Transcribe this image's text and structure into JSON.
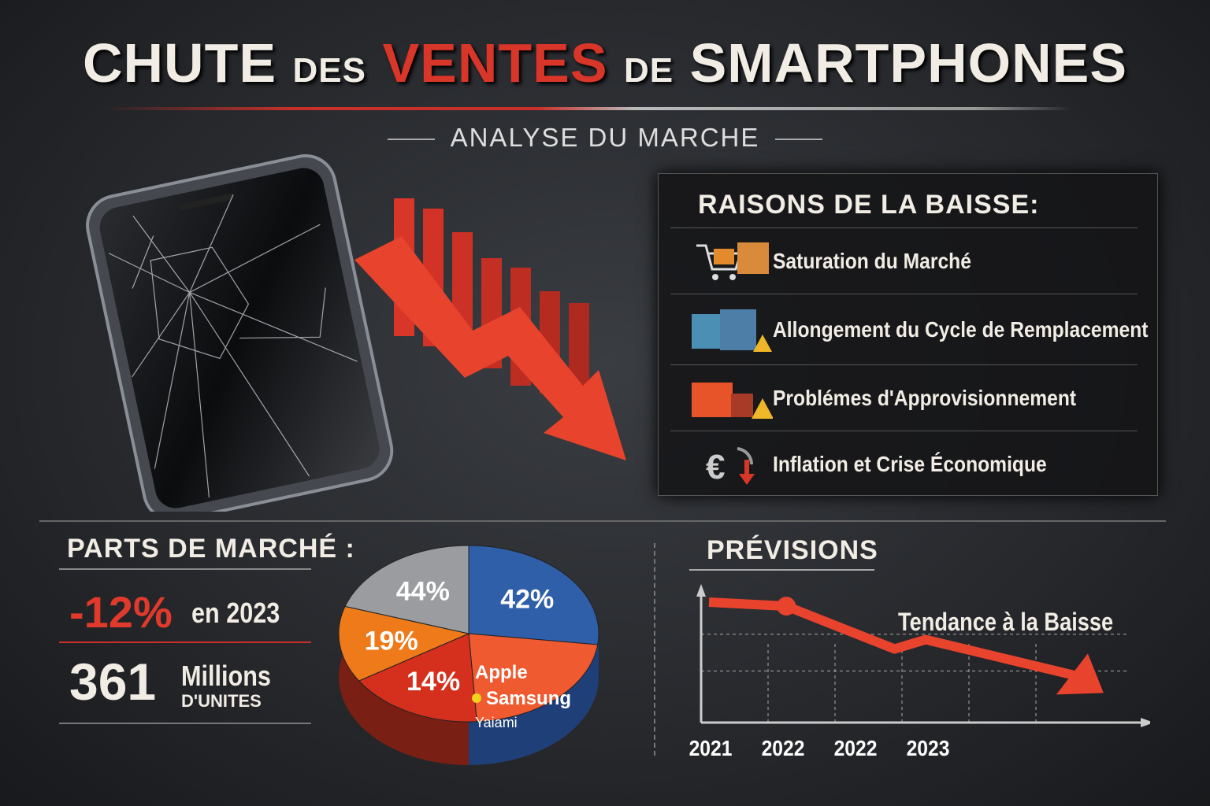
{
  "header": {
    "title_1": "CHUTE",
    "title_2": "DES",
    "title_3": "VENTES",
    "title_4": "DE",
    "title_5": "SMARTPHONES",
    "subtitle": "ANALYSE DU MARCHE"
  },
  "reasons": {
    "heading": "RAISONS DE LA BAISSE:",
    "items": [
      {
        "label": "Saturation du Marché",
        "icon": "shopping-cart-icon"
      },
      {
        "label": "Allongement du Cycle de Remplacement",
        "icon": "luggage-warning-icon"
      },
      {
        "label": "Problémes d'Approvisionnement",
        "icon": "container-warning-icon"
      },
      {
        "label": "Inflation et Crise Économique",
        "icon": "euro-down-icon"
      }
    ]
  },
  "market": {
    "heading": "PARTS DE MARCHÉ :",
    "change": "-12%",
    "change_suffix": "en 2023",
    "units": "361",
    "units_label_1": "Millions",
    "units_label_2": "D'UNITES"
  },
  "colors": {
    "accent": "#d9362a",
    "blue": "#2f5fa8",
    "gray": "#9a9ca0",
    "orange": "#ef7a1a"
  },
  "chart_data": [
    {
      "type": "pie",
      "title": "Parts de Marché",
      "slices": [
        {
          "label": "42%",
          "color": "#2f5fa8"
        },
        {
          "label": "",
          "color": "#ef5a30"
        },
        {
          "label": "14%",
          "color": "#d5301e"
        },
        {
          "label": "19%",
          "color": "#ef7a1a"
        },
        {
          "label": "44%",
          "color": "#9a9ca0"
        }
      ],
      "legend": [
        "Apple",
        "Samsung",
        "Yaiami"
      ]
    },
    {
      "type": "line",
      "title": "PRÉVISIONS",
      "annotation": "Tendance à la Baisse",
      "categories": [
        "2021",
        "2022",
        "2022",
        "2023"
      ],
      "x": [
        0,
        1,
        2.4,
        2.8,
        5
      ],
      "y": [
        90,
        87,
        55,
        62,
        28
      ],
      "ylim": [
        0,
        100
      ],
      "xlim": [
        0,
        5.5
      ]
    }
  ]
}
